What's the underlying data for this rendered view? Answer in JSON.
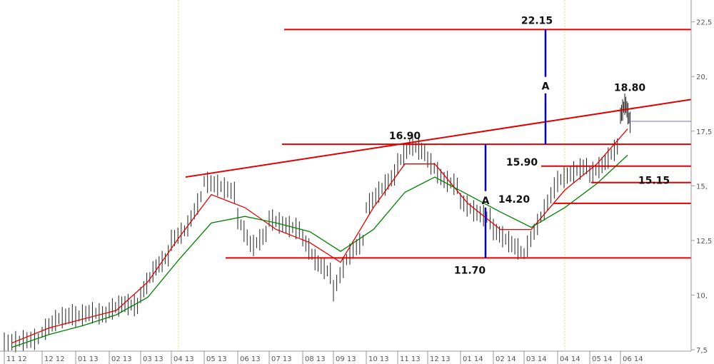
{
  "chart_data": {
    "type": "candlestick",
    "title": "",
    "xlabel": "",
    "ylabel": "",
    "ylim": [
      7.5,
      23.5
    ],
    "y_ticks": [
      "7,5",
      "10,",
      "12,5",
      "15,",
      "17,5",
      "20,",
      "22,5"
    ],
    "y_tick_values": [
      7.5,
      10,
      12.5,
      15,
      17.5,
      20,
      22.5
    ],
    "x_ticks": [
      "11 12",
      "12 12",
      "01 13",
      "02 13",
      "03 13",
      "04 13",
      "05 13",
      "06 13",
      "07 13",
      "08 13",
      "09 13",
      "10 13",
      "11 13",
      "12 13",
      "01 14",
      "02 14",
      "03 14",
      "04 14",
      "05 14",
      "06 14"
    ],
    "grid": false,
    "vertical_markers": [
      "04 13",
      "04 14"
    ],
    "last_price": 17.95,
    "price_series": [
      {
        "month": "11 12",
        "values": [
          7.8,
          7.9,
          8.0
        ]
      },
      {
        "month": "12 12",
        "values": [
          8.3,
          8.9,
          9.1
        ]
      },
      {
        "month": "01 13",
        "values": [
          9.0,
          9.2,
          9.1
        ]
      },
      {
        "month": "02 13",
        "values": [
          9.3,
          9.6,
          9.5
        ]
      },
      {
        "month": "03 13",
        "values": [
          10.0,
          11.2,
          11.8
        ]
      },
      {
        "month": "04 13",
        "values": [
          12.5,
          13.0,
          14.5
        ]
      },
      {
        "month": "05 13",
        "values": [
          15.2,
          15.0,
          14.7
        ]
      },
      {
        "month": "06 13",
        "values": [
          13.5,
          12.2,
          12.8
        ]
      },
      {
        "month": "07 13",
        "values": [
          13.5,
          13.2,
          13.0
        ]
      },
      {
        "month": "08 13",
        "values": [
          12.6,
          11.5,
          11.0
        ]
      },
      {
        "month": "09 13",
        "values": [
          10.2,
          11.8,
          12.5
        ]
      },
      {
        "month": "10 13",
        "values": [
          14.0,
          14.8,
          15.5
        ]
      },
      {
        "month": "11 13",
        "values": [
          16.0,
          16.9,
          16.5
        ]
      },
      {
        "month": "12 13",
        "values": [
          16.2,
          15.3,
          15.0
        ]
      },
      {
        "month": "01 14",
        "values": [
          14.3,
          13.8,
          13.5
        ]
      },
      {
        "month": "02 14",
        "values": [
          13.0,
          12.5,
          12.0
        ]
      },
      {
        "month": "03 14",
        "values": [
          11.9,
          13.4,
          14.9
        ]
      },
      {
        "month": "04 14",
        "values": [
          15.2,
          15.6,
          15.9
        ]
      },
      {
        "month": "05 14",
        "values": [
          15.5,
          16.0,
          16.8
        ]
      },
      {
        "month": "06 14",
        "values": [
          18.2,
          18.8,
          17.9
        ]
      }
    ],
    "series": [
      {
        "name": "",
        "color": "#e00000",
        "values": [
          7.8,
          8.5,
          8.9,
          9.3,
          10.6,
          12.6,
          14.6,
          14.0,
          13.0,
          12.4,
          11.5,
          14.0,
          16.0,
          16.0,
          14.2,
          13.0,
          13.0,
          14.8,
          16.0,
          17.6
        ]
      },
      {
        "name": "",
        "color": "#008000",
        "values": [
          7.6,
          8.2,
          8.6,
          9.1,
          9.9,
          11.6,
          13.3,
          13.6,
          13.3,
          12.9,
          12.0,
          13.0,
          14.7,
          15.4,
          14.6,
          13.8,
          13.1,
          14.0,
          15.1,
          16.4
        ]
      }
    ],
    "levels": [
      {
        "label": "22.15",
        "value": 22.15,
        "color": "#e00000"
      },
      {
        "label": "16.90",
        "value": 16.9,
        "color": "#e00000"
      },
      {
        "label": "15.90",
        "value": 15.9,
        "color": "#e00000"
      },
      {
        "label": "15.15",
        "value": 15.15,
        "color": "#e00000"
      },
      {
        "label": "14.20",
        "value": 14.2,
        "color": "#e00000"
      },
      {
        "label": "11.70",
        "value": 11.7,
        "color": "#e00000"
      }
    ],
    "trendline": {
      "label": "18.80",
      "color": "#e00000",
      "from": {
        "month": "04 13",
        "value": 15.4
      },
      "to": {
        "month": "06 14",
        "value": 18.95
      }
    },
    "measures": [
      {
        "label": "A",
        "from": 11.7,
        "to": 16.9,
        "color": "#0000c8"
      },
      {
        "label": "A",
        "from": 16.9,
        "to": 22.15,
        "color": "#0000c8"
      }
    ]
  }
}
